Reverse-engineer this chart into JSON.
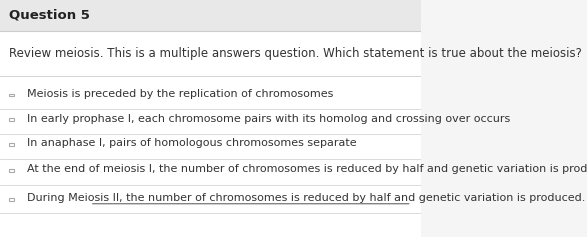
{
  "title": "Question 5",
  "question": "Review meiosis. This is a multiple answers question. Which statement is true about the meiosis?",
  "options": [
    "Meiosis is preceded by the replication of chromosomes",
    "In early prophase I, each chromosome pairs with its homolog and crossing over occurs",
    "In anaphase I, pairs of homologous chromosomes separate",
    "At the end of meiosis I, the number of chromosomes is reduced by half and genetic variation is produced.",
    "During Meiosis II, the number of chromosomes is reduced by half and genetic variation is produced."
  ],
  "underline_last": true,
  "bg_color": "#f5f5f5",
  "header_bg": "#e8e8e8",
  "body_bg": "#ffffff",
  "title_color": "#222222",
  "question_color": "#333333",
  "option_color": "#333333",
  "last_option_color": "#333333",
  "title_fontsize": 9.5,
  "question_fontsize": 8.5,
  "option_fontsize": 8.0,
  "separator_color": "#cccccc",
  "checkbox_color": "#aaaaaa"
}
